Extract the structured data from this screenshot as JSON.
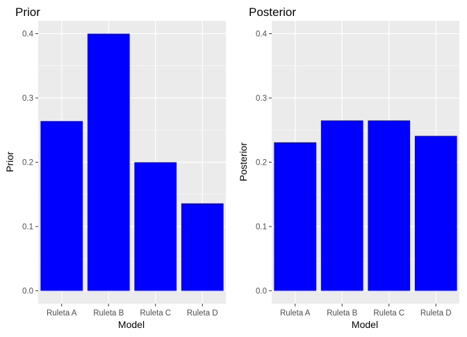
{
  "chart_data": [
    {
      "type": "bar",
      "title": "Prior",
      "xlabel": "Model",
      "ylabel": "Prior",
      "categories": [
        "Ruleta A",
        "Ruleta B",
        "Ruleta C",
        "Ruleta D"
      ],
      "values": [
        0.264,
        0.4,
        0.2,
        0.136
      ],
      "ylim": [
        -0.02,
        0.42
      ],
      "yticks": [
        0.0,
        0.1,
        0.2,
        0.3,
        0.4
      ],
      "ytick_labels": [
        "0.0",
        "0.1",
        "0.2",
        "0.3",
        "0.4"
      ],
      "bar_color": "#0000ff",
      "panel_background": "#ebebeb",
      "grid_color": "#ffffff",
      "grid": true
    },
    {
      "type": "bar",
      "title": "Posterior",
      "xlabel": "Model",
      "ylabel": "Posterior",
      "categories": [
        "Ruleta A",
        "Ruleta B",
        "Ruleta C",
        "Ruleta D"
      ],
      "values": [
        0.231,
        0.265,
        0.265,
        0.241
      ],
      "ylim": [
        -0.02,
        0.42
      ],
      "yticks": [
        0.0,
        0.1,
        0.2,
        0.3,
        0.4
      ],
      "ytick_labels": [
        "0.0",
        "0.1",
        "0.2",
        "0.3",
        "0.4"
      ],
      "bar_color": "#0000ff",
      "panel_background": "#ebebeb",
      "grid_color": "#ffffff",
      "grid": true
    }
  ]
}
